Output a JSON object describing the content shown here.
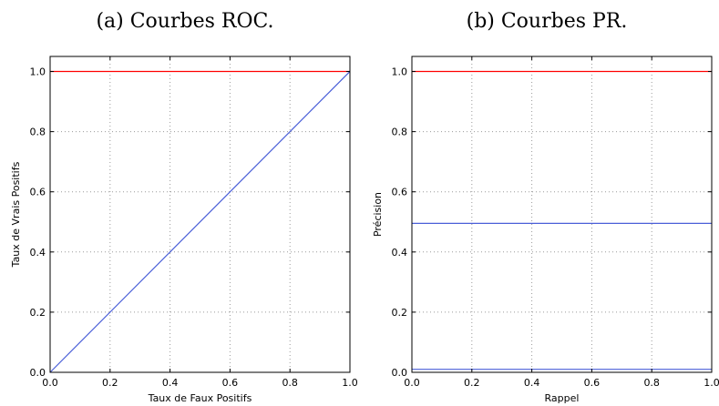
{
  "chart_data": [
    {
      "type": "line",
      "title": "(a) Courbes ROC.",
      "xlabel": "Taux de Faux Positifs",
      "ylabel": "Taux de Vrais Positifs",
      "xlim": [
        0.0,
        1.0
      ],
      "ylim": [
        0.0,
        1.05
      ],
      "xticks": [
        "0.0",
        "0.2",
        "0.4",
        "0.6",
        "0.8",
        "1.0"
      ],
      "yticks": [
        "0.0",
        "0.2",
        "0.4",
        "0.6",
        "0.8",
        "1.0"
      ],
      "grid": true,
      "series": [
        {
          "color": "#ff0000",
          "x": [
            0.0,
            1.0
          ],
          "y": [
            1.0,
            1.0
          ]
        },
        {
          "color": "#4a5fd8",
          "x": [
            0.0,
            1.0
          ],
          "y": [
            0.0,
            1.0
          ]
        }
      ]
    },
    {
      "type": "line",
      "title": "(b) Courbes PR.",
      "xlabel": "Rappel",
      "ylabel": "Précision",
      "xlim": [
        0.0,
        1.0
      ],
      "ylim": [
        0.0,
        1.05
      ],
      "xticks": [
        "0.0",
        "0.2",
        "0.4",
        "0.6",
        "0.8",
        "1.0"
      ],
      "yticks": [
        "0.0",
        "0.2",
        "0.4",
        "0.6",
        "0.8",
        "1.0"
      ],
      "grid": true,
      "series": [
        {
          "color": "#ff0000",
          "x": [
            0.0,
            1.0
          ],
          "y": [
            1.0,
            1.0
          ]
        },
        {
          "color": "#4a5fd8",
          "x": [
            0.0,
            1.0
          ],
          "y": [
            0.495,
            0.495
          ]
        },
        {
          "color": "#4a5fd8",
          "x": [
            0.0,
            1.0
          ],
          "y": [
            0.01,
            0.01
          ]
        }
      ]
    }
  ]
}
